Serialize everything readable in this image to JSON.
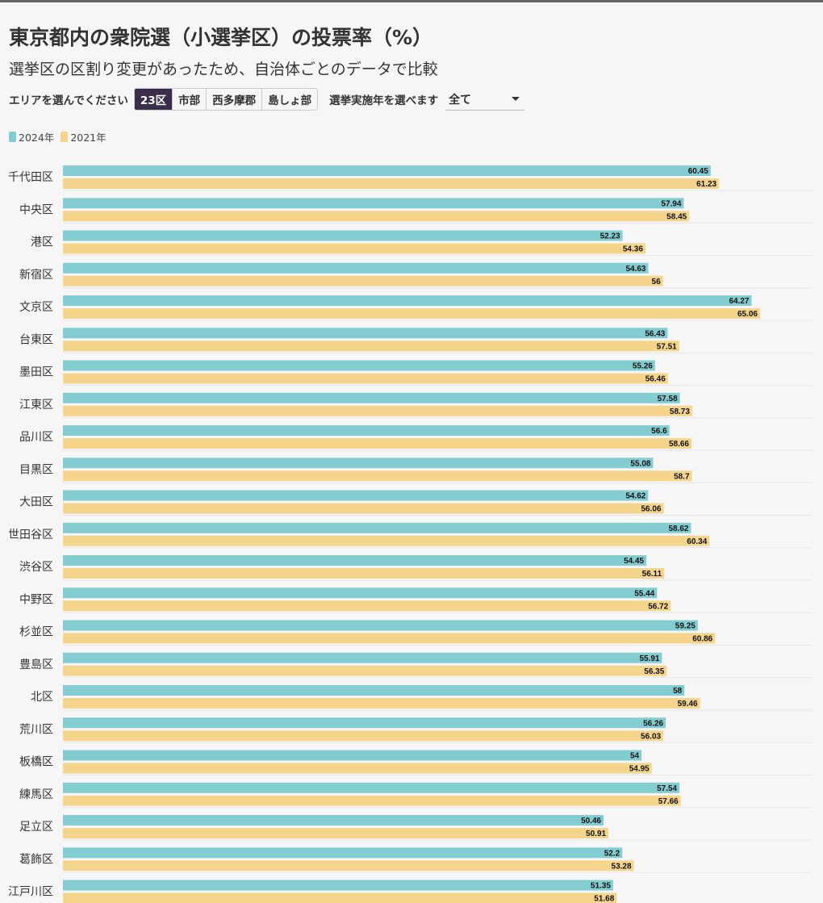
{
  "header": {
    "title": "東京都内の衆院選（小選挙区）の投票率（%）",
    "subtitle": "選挙区の区割り変更があったため、自治体ごとのデータで比較"
  },
  "controls": {
    "area_label": "エリアを選んでください",
    "area_options": [
      "23区",
      "市部",
      "西多摩郡",
      "島しょ部"
    ],
    "area_selected": "23区",
    "year_label": "選挙実施年を選べます",
    "year_selected": "全て"
  },
  "colors": {
    "series_2024": "#83cdd2",
    "series_2021": "#f5d58b",
    "active_button": "#3b2e4a"
  },
  "chart_data": {
    "type": "bar",
    "orientation": "horizontal",
    "grid": false,
    "legend_placement": "top-left",
    "categories": [
      "千代田区",
      "中央区",
      "港区",
      "新宿区",
      "文京区",
      "台東区",
      "墨田区",
      "江東区",
      "品川区",
      "目黒区",
      "大田区",
      "世田谷区",
      "渋谷区",
      "中野区",
      "杉並区",
      "豊島区",
      "北区",
      "荒川区",
      "板橋区",
      "練馬区",
      "足立区",
      "葛飾区",
      "江戸川区"
    ],
    "series": [
      {
        "name": "2024年",
        "values": [
          60.45,
          57.94,
          52.23,
          54.63,
          64.27,
          56.43,
          55.26,
          57.58,
          56.6,
          55.08,
          54.62,
          58.62,
          54.45,
          55.44,
          59.25,
          55.91,
          58,
          56.26,
          54,
          57.54,
          50.46,
          52.2,
          51.35
        ]
      },
      {
        "name": "2021年",
        "values": [
          61.23,
          58.45,
          54.36,
          56,
          65.06,
          57.51,
          56.46,
          58.73,
          58.66,
          58.7,
          56.06,
          60.34,
          56.11,
          56.72,
          60.86,
          56.35,
          59.46,
          56.03,
          54.95,
          57.66,
          50.91,
          53.28,
          51.68
        ]
      }
    ],
    "xlim": [
      0,
      70
    ]
  }
}
